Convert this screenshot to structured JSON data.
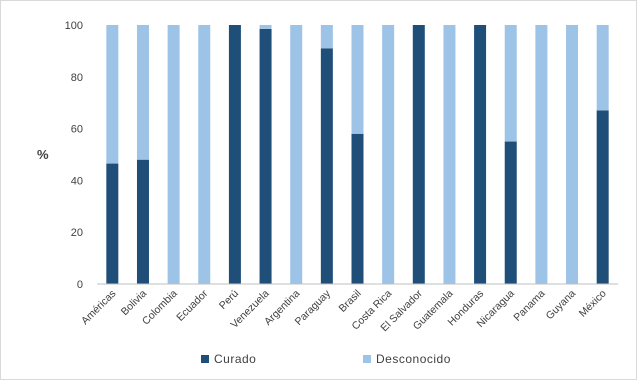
{
  "chart_data": {
    "type": "bar",
    "stacked": true,
    "title": "",
    "xlabel": "",
    "ylabel": "%",
    "ylim": [
      0,
      100
    ],
    "yticks": [
      0,
      20,
      40,
      60,
      80,
      100
    ],
    "grid": false,
    "legend_position": "bottom",
    "categories": [
      "Américas",
      "Bolivia",
      "Colombia",
      "Ecuador",
      "Perú",
      "Venezuela",
      "Argentina",
      "Paraguay",
      "Brasil",
      "Costa Rica",
      "El Salvador",
      "Guatemala",
      "Honduras",
      "Nicaragua",
      "Panama",
      "Guyana",
      "México"
    ],
    "series": [
      {
        "name": "Curado",
        "color": "#1f4e79",
        "values": [
          46.5,
          48,
          0,
          0,
          100,
          98.5,
          0,
          91,
          58,
          0,
          100,
          0,
          100,
          55,
          0,
          0,
          67
        ]
      },
      {
        "name": "Desconocido",
        "color": "#9dc3e6",
        "values": [
          53.5,
          52,
          100,
          100,
          0,
          1.5,
          100,
          9,
          42,
          100,
          0,
          100,
          0,
          45,
          100,
          100,
          33
        ]
      }
    ]
  }
}
